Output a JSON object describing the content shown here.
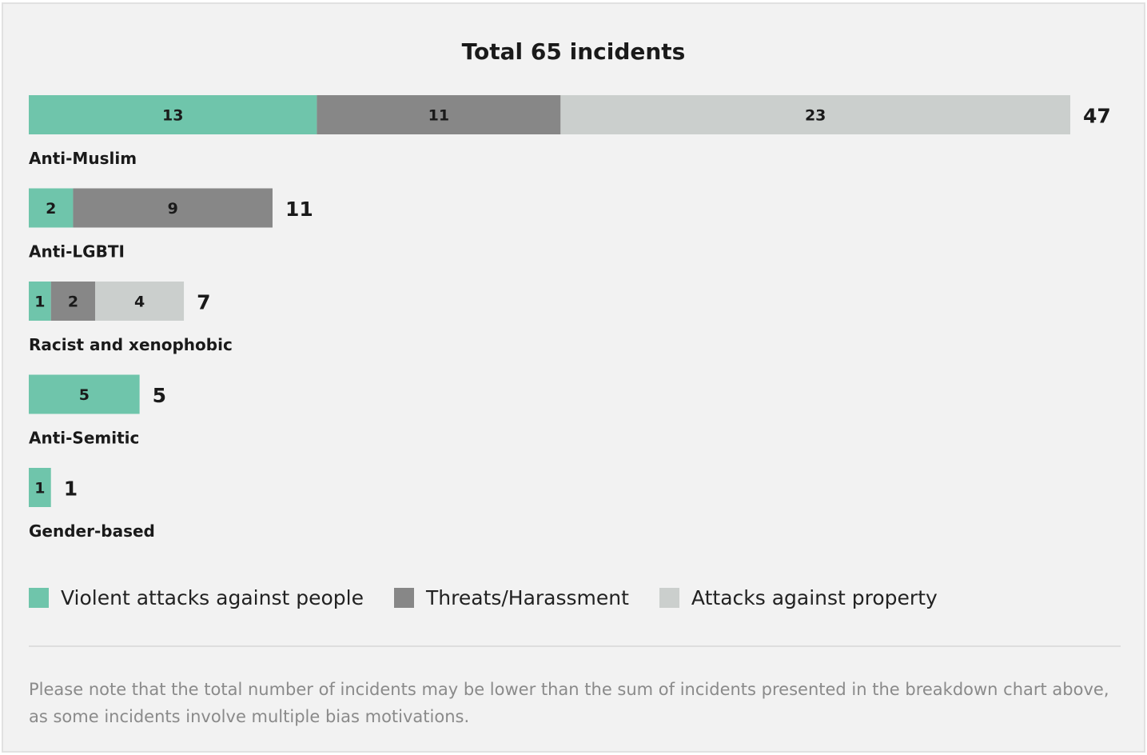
{
  "chart_data": {
    "type": "bar",
    "orientation": "horizontal",
    "stacked": true,
    "title": "Total 65 incidents",
    "categories": [
      "Anti-Muslim",
      "Anti-LGBTI",
      "Racist and xenophobic",
      "Anti-Semitic",
      "Gender-based"
    ],
    "totals": [
      47,
      11,
      7,
      5,
      1
    ],
    "series": [
      {
        "name": "Violent attacks against people",
        "color": "#6fc5ab",
        "values": [
          13,
          2,
          1,
          5,
          1
        ]
      },
      {
        "name": "Threats/Harassment",
        "color": "#878787",
        "values": [
          11,
          9,
          2,
          0,
          0
        ]
      },
      {
        "name": "Attacks against property",
        "color": "#cbcfcd",
        "values": [
          23,
          0,
          4,
          0,
          0
        ]
      }
    ],
    "xlim": [
      0,
      47
    ],
    "grid": false,
    "legend_position": "bottom-left"
  },
  "note": "Please note that the total number of incidents may be lower than the sum of incidents presented in the breakdown chart above, as some incidents involve multiple bias motivations."
}
